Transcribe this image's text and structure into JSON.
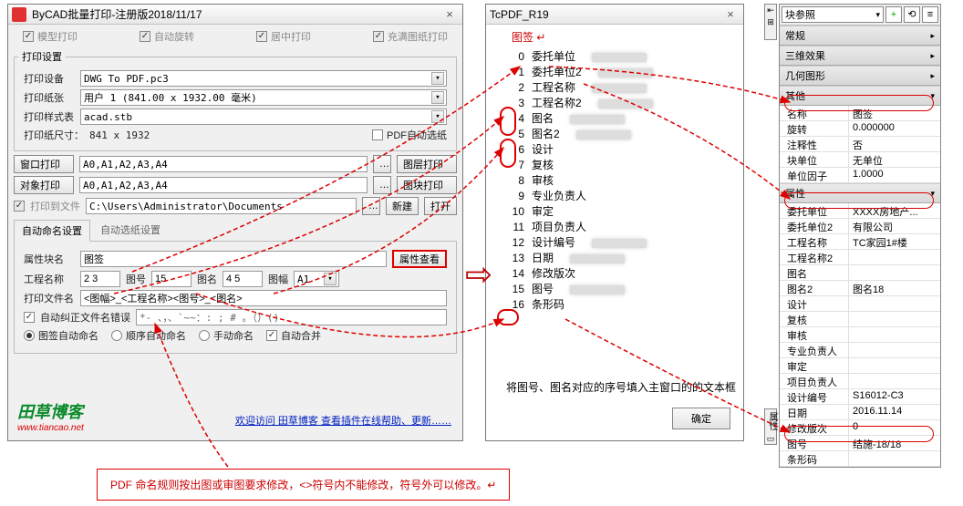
{
  "mainWin": {
    "title": "ByCAD批量打印-注册版2018/11/17",
    "topChecks": [
      "模型打印",
      "自动旋转",
      "居中打印",
      "充满图纸打印"
    ],
    "fs1": "打印设置",
    "labels": {
      "device": "打印设备",
      "paper": "打印纸张",
      "style": "打印样式表",
      "size": "打印纸尺寸：",
      "sizeVal": "841 x 1932",
      "pdfAuto": "PDF自动选纸"
    },
    "device": "DWG To PDF.pc3",
    "paper": "用户 1 (841.00 x 1932.00 毫米)",
    "style": "acad.stb",
    "winPrint": "窗口打印",
    "objPrint": "对象打印",
    "range": "A0,A1,A2,A3,A4",
    "layerPrint": "图层打印",
    "blockPrint": "图块打印",
    "toFile": "打印到文件",
    "path": "C:\\Users\\Administrator\\Documents",
    "newBtn": "新建",
    "openBtn": "打开",
    "tab1": "自动命名设置",
    "tab2": "自动选纸设置",
    "attrBlock": "属性块名",
    "attrVal": "图签",
    "attrView": "属性查看",
    "projName": "工程名称",
    "projVal": "2 3",
    "drawNum": "图号",
    "drawNumVal": "15",
    "drawName": "图名",
    "drawNameVal": "4 5",
    "frame": "图幅",
    "frameVal": "A1",
    "printFile": "打印文件名",
    "printFileVal": "<图幅>_<工程名称><图号>_<图名>",
    "autoFix": "自动纠正文件名错误",
    "badChars": "*- 、，、`~~：: ; # 。（）()",
    "r1": "图签自动命名",
    "r2": "顺序自动命名",
    "r3": "手动命名",
    "autoMerge": "自动合并",
    "logo": "田草博客",
    "url": "www.tiancao.net",
    "link": "欢迎访问 田草博客 查看插件在线帮助、更新……"
  },
  "pdfWin": {
    "title": "TcPDF_R19",
    "header": "图签",
    "items": [
      {
        "n": "0",
        "t": "委托单位",
        "b": true
      },
      {
        "n": "1",
        "t": "委托单位2",
        "b": true
      },
      {
        "n": "2",
        "t": "工程名称",
        "b": true,
        "c": true
      },
      {
        "n": "3",
        "t": "工程名称2",
        "b": true,
        "c": true
      },
      {
        "n": "4",
        "t": "图名",
        "b": true,
        "c": true
      },
      {
        "n": "5",
        "t": "图名2",
        "b": true,
        "c": true
      },
      {
        "n": "6",
        "t": "设计"
      },
      {
        "n": "7",
        "t": "复核"
      },
      {
        "n": "8",
        "t": "审核"
      },
      {
        "n": "9",
        "t": "专业负责人"
      },
      {
        "n": "10",
        "t": "审定"
      },
      {
        "n": "11",
        "t": "项目负责人"
      },
      {
        "n": "12",
        "t": "设计编号",
        "b": true
      },
      {
        "n": "13",
        "t": "日期",
        "b": true
      },
      {
        "n": "14",
        "t": "修改版次"
      },
      {
        "n": "15",
        "t": "图号",
        "b": true,
        "c": true
      },
      {
        "n": "16",
        "t": "条形码"
      }
    ],
    "footer": "将图号、图名对应的序号填入主窗口的的文本框",
    "ok": "确定"
  },
  "props": {
    "headerSel": "块参照",
    "sections": [
      {
        "t": "常规",
        "open": false
      },
      {
        "t": "三维效果",
        "open": false
      },
      {
        "t": "几何图形",
        "open": false
      },
      {
        "t": "其他",
        "open": true,
        "rows": [
          {
            "k": "名称",
            "v": "图签"
          },
          {
            "k": "旋转",
            "v": "0.000000"
          },
          {
            "k": "注释性",
            "v": "否"
          },
          {
            "k": "块单位",
            "v": "无单位"
          },
          {
            "k": "单位因子",
            "v": "1.0000"
          }
        ]
      },
      {
        "t": "属性",
        "open": true,
        "rows": [
          {
            "k": "委托单位",
            "v": "XXXX房地产..."
          },
          {
            "k": "委托单位2",
            "v": "有限公司"
          },
          {
            "k": "工程名称",
            "v": "TC家园1#楼"
          },
          {
            "k": "工程名称2",
            "v": ""
          },
          {
            "k": "图名",
            "v": ""
          },
          {
            "k": "图名2",
            "v": "图名18"
          },
          {
            "k": "设计",
            "v": ""
          },
          {
            "k": "复核",
            "v": ""
          },
          {
            "k": "审核",
            "v": ""
          },
          {
            "k": "专业负责人",
            "v": ""
          },
          {
            "k": "审定",
            "v": ""
          },
          {
            "k": "项目负责人",
            "v": ""
          },
          {
            "k": "设计编号",
            "v": "S16012-C3"
          },
          {
            "k": "日期",
            "v": "2016.11.14"
          },
          {
            "k": "修改版次",
            "v": "0"
          },
          {
            "k": "图号",
            "v": "结施-18/18"
          },
          {
            "k": "条形码",
            "v": ""
          }
        ]
      }
    ],
    "sideLabel": "属性"
  },
  "note": "PDF 命名规则按出图或审图要求修改，<>符号内不能修改，符号外可以修改。↵",
  "colors": {
    "red": "#d00",
    "arrow": "#b00"
  }
}
